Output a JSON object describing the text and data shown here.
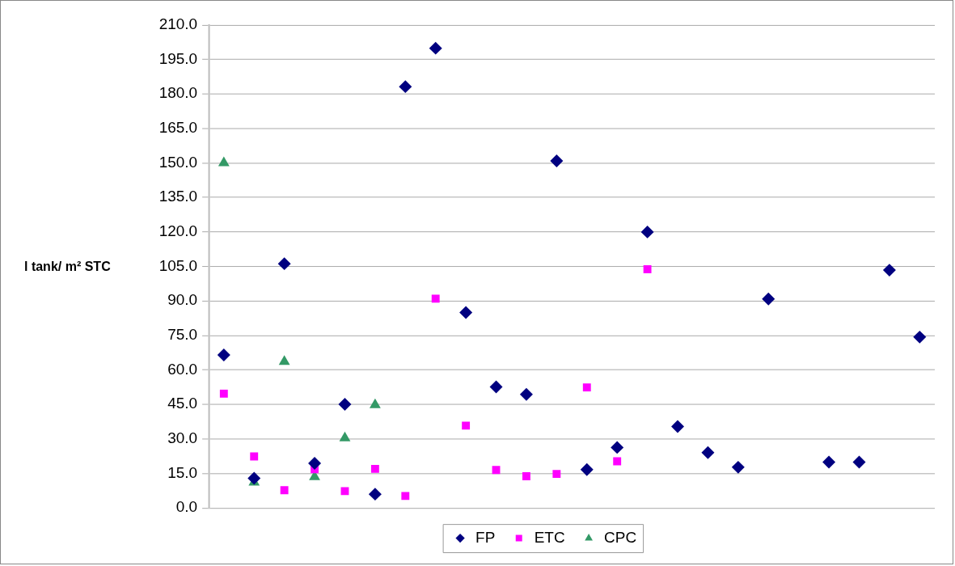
{
  "chart_data": {
    "type": "scatter",
    "ylabel": "l tank/ m² STC",
    "categories": [
      null,
      null,
      null,
      null,
      null,
      null,
      null,
      null,
      null,
      null,
      null,
      null,
      null,
      null,
      null,
      null,
      null,
      null,
      null,
      null,
      null,
      null,
      null,
      null
    ],
    "series": [
      {
        "name": "FP",
        "color": "#000080",
        "marker": "diamond",
        "values": [
          66.5,
          12.9,
          106.2,
          19.4,
          45.1,
          6.0,
          183.2,
          199.9,
          85.0,
          52.6,
          49.4,
          150.9,
          16.7,
          26.3,
          120.0,
          35.4,
          24.1,
          17.7,
          90.9,
          null,
          19.9,
          19.9,
          103.4,
          74.3
        ]
      },
      {
        "name": "ETC",
        "color": "#ff00ff",
        "marker": "square",
        "values": [
          49.7,
          22.4,
          7.7,
          16.8,
          7.3,
          17.0,
          5.2,
          91.0,
          35.8,
          16.5,
          13.8,
          14.8,
          52.4,
          20.3,
          103.8,
          null,
          null,
          null,
          null,
          null,
          null,
          null,
          null,
          null
        ]
      },
      {
        "name": "CPC",
        "color": "#339966",
        "marker": "triangle",
        "values": [
          150.0,
          11.1,
          63.6,
          13.5,
          30.4,
          44.8,
          null,
          null,
          null,
          null,
          null,
          null,
          null,
          null,
          null,
          null,
          null,
          null,
          null,
          null,
          null,
          null,
          null,
          null
        ]
      }
    ],
    "ylim": [
      0,
      210
    ],
    "yticks": [
      {
        "value": 0,
        "label": "0.0"
      },
      {
        "value": 15,
        "label": "15.0"
      },
      {
        "value": 30,
        "label": "30.0"
      },
      {
        "value": 45,
        "label": "45.0"
      },
      {
        "value": 60,
        "label": "60.0"
      },
      {
        "value": 75,
        "label": "75.0"
      },
      {
        "value": 90,
        "label": "90.0"
      },
      {
        "value": 105,
        "label": "105.0"
      },
      {
        "value": 120,
        "label": "120.0"
      },
      {
        "value": 135,
        "label": "135.0"
      },
      {
        "value": 150,
        "label": "150.0"
      },
      {
        "value": 165,
        "label": "165.0"
      },
      {
        "value": 180,
        "label": "180.0"
      },
      {
        "value": 195,
        "label": "195.0"
      },
      {
        "value": 210,
        "label": "210.0"
      }
    ],
    "grid": "y",
    "legend": "bottom",
    "tick_labels": "y"
  }
}
